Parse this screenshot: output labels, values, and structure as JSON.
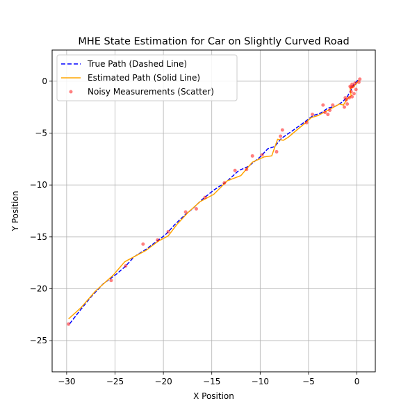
{
  "chart_data": {
    "type": "line",
    "title": "MHE State Estimation for Car on Slightly Curved Road",
    "xlabel": "X Position",
    "ylabel": "Y Position",
    "xlim": [
      -31.5,
      1.9
    ],
    "ylim": [
      -28.0,
      3.0
    ],
    "xticks": [
      -30,
      -25,
      -20,
      -15,
      -10,
      -5,
      0
    ],
    "yticks": [
      -25,
      -20,
      -15,
      -10,
      -5,
      0
    ],
    "grid": true,
    "legend_position": "top-left",
    "colors": {
      "true_path": "#0000ff",
      "estimated_path": "#ffa500",
      "measurements": "#ff0000"
    },
    "series": [
      {
        "name": "True Path (Dashed Line)",
        "style": "dashed",
        "x": [
          0.1,
          -0.3,
          -0.7,
          -1.0,
          -1.5,
          -2.2,
          -3.0,
          -3.8,
          -4.5,
          -5.5,
          -6.7,
          -7.8,
          -8.5,
          -9.2,
          -10.0,
          -11.2,
          -12.2,
          -13.5,
          -14.8,
          -16.0,
          -17.0,
          -17.8,
          -18.8,
          -19.8,
          -20.8,
          -21.8,
          -23.0,
          -24.0,
          -25.0,
          -26.2,
          -27.5,
          -28.8,
          -29.8
        ],
        "y": [
          0.1,
          -0.3,
          -1.0,
          -1.5,
          -2.0,
          -2.4,
          -2.6,
          -3.1,
          -3.3,
          -4.0,
          -4.8,
          -5.5,
          -6.3,
          -6.5,
          -7.3,
          -8.2,
          -8.6,
          -9.7,
          -10.5,
          -11.4,
          -12.3,
          -12.9,
          -13.8,
          -14.8,
          -15.5,
          -16.2,
          -16.9,
          -17.9,
          -18.7,
          -19.5,
          -20.8,
          -22.3,
          -23.5
        ]
      },
      {
        "name": "Estimated Path (Solid Line)",
        "style": "solid",
        "x": [
          0.2,
          -0.3,
          -0.7,
          -0.6,
          -1.0,
          -1.4,
          -1.8,
          -2.6,
          -3.2,
          -4.0,
          -4.7,
          -5.3,
          -6.2,
          -7.1,
          -7.6,
          -8.2,
          -8.8,
          -9.6,
          -10.8,
          -12.0,
          -13.4,
          -14.8,
          -16.2,
          -17.4,
          -18.6,
          -19.5,
          -20.5,
          -21.8,
          -22.8,
          -24.0,
          -25.2,
          -27.0,
          -28.5,
          -29.8
        ],
        "y": [
          0.1,
          -0.5,
          -0.7,
          -1.4,
          -1.7,
          -2.3,
          -2.2,
          -2.6,
          -2.9,
          -3.3,
          -3.5,
          -4.0,
          -4.7,
          -5.4,
          -5.7,
          -5.6,
          -7.2,
          -7.3,
          -7.8,
          -9.1,
          -9.6,
          -10.9,
          -11.6,
          -12.6,
          -13.8,
          -14.9,
          -15.4,
          -16.3,
          -16.8,
          -17.4,
          -18.7,
          -20.2,
          -21.8,
          -22.9
        ]
      },
      {
        "name": "Noisy Measurements (Scatter)",
        "style": "scatter",
        "x": [
          0.3,
          0.2,
          -0.1,
          -0.2,
          -0.3,
          -0.4,
          -0.5,
          -0.5,
          -0.6,
          -0.6,
          -0.7,
          -0.8,
          -1.0,
          -1.1,
          -1.2,
          -1.3,
          -2.5,
          -2.8,
          -3.0,
          -3.3,
          -3.5,
          -4.6,
          -5.2,
          -7.7,
          -7.9,
          -8.3,
          -9.8,
          -10.8,
          -11.4,
          -12.6,
          -13.7,
          -15.7,
          -16.6,
          -17.7,
          -19.5,
          -20.6,
          -22.1,
          -23.9,
          -25.4,
          -29.8
        ],
        "y": [
          0.2,
          -0.1,
          -0.8,
          -0.2,
          -1.2,
          -0.5,
          -0.3,
          -1.5,
          -0.6,
          -1.0,
          -0.5,
          -1.6,
          -2.2,
          -1.8,
          -1.6,
          -2.5,
          -2.3,
          -2.8,
          -3.2,
          -3.0,
          -2.3,
          -3.2,
          -4.0,
          -4.7,
          -5.3,
          -6.8,
          -7.1,
          -7.2,
          -8.5,
          -8.6,
          -9.8,
          -11.2,
          -12.3,
          -12.6,
          -14.5,
          -15.3,
          -15.7,
          -17.8,
          -19.2,
          -23.4
        ]
      }
    ]
  }
}
